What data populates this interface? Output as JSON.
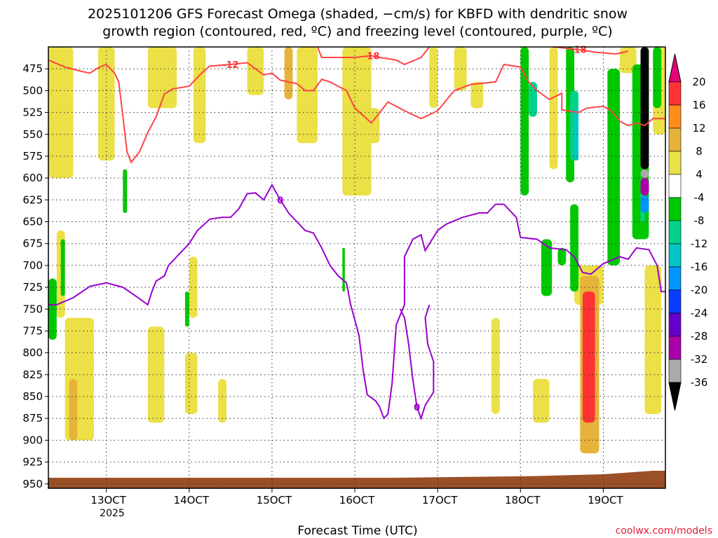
{
  "chart_data": {
    "type": "heatmap",
    "title_line1": "2025101206 GFS Forecast Omega (shaded, −cm/s) for KBFD with dendritic snow",
    "title_line2": "growth region (contoured, red, ºC) and freezing level (contoured, purple, ºC)",
    "xlabel": "Forecast Time (UTC)",
    "credit": "coolwx.com/models",
    "x_ticks": [
      {
        "label": "13OCT",
        "day": 13
      },
      {
        "label": "14OCT",
        "day": 14
      },
      {
        "label": "15OCT",
        "day": 15
      },
      {
        "label": "16OCT",
        "day": 16
      },
      {
        "label": "17OCT",
        "day": 17
      },
      {
        "label": "18OCT",
        "day": 18
      },
      {
        "label": "19OCT",
        "day": 19
      }
    ],
    "x_year": "2025",
    "xlim": [
      12.3,
      19.75
    ],
    "ylim": [
      450,
      955
    ],
    "y_ticks": [
      475,
      500,
      525,
      550,
      575,
      600,
      625,
      650,
      675,
      700,
      725,
      750,
      775,
      800,
      825,
      850,
      875,
      900,
      925,
      950
    ],
    "colorbar": {
      "labels": [
        "20",
        "16",
        "12",
        "8",
        "4",
        "-4",
        "-8",
        "-12",
        "-16",
        "-20",
        "-24",
        "-28",
        "-32",
        "-36"
      ],
      "colors": [
        "#ff3333",
        "#ff8c1a",
        "#e6b33a",
        "#ebe046",
        "#ffffff",
        "#00c800",
        "#00d28c",
        "#00c8c8",
        "#0096ff",
        "#0a3cff",
        "#6600cc",
        "#aa00aa",
        "#aaaaaa"
      ],
      "top_color": "#e6007a",
      "bottom_color": "#000000"
    },
    "dendritic_contours": [
      {
        "label": "-12",
        "points": [
          [
            12.3,
            465
          ],
          [
            12.5,
            473
          ],
          [
            12.7,
            478
          ],
          [
            12.8,
            480
          ],
          [
            12.9,
            474
          ],
          [
            13.0,
            470
          ],
          [
            13.1,
            480
          ],
          [
            13.15,
            490
          ],
          [
            13.2,
            530
          ],
          [
            13.25,
            570
          ],
          [
            13.3,
            582
          ],
          [
            13.4,
            570
          ],
          [
            13.5,
            548
          ],
          [
            13.6,
            530
          ],
          [
            13.7,
            504
          ],
          [
            13.8,
            498
          ],
          [
            14.0,
            495
          ],
          [
            14.15,
            480
          ],
          [
            14.25,
            472
          ],
          [
            14.5,
            470
          ],
          [
            14.7,
            468
          ],
          [
            14.8,
            475
          ],
          [
            14.9,
            482
          ],
          [
            15.0,
            480
          ],
          [
            15.1,
            488
          ],
          [
            15.3,
            492
          ],
          [
            15.4,
            500
          ],
          [
            15.5,
            500
          ],
          [
            15.6,
            487
          ],
          [
            15.7,
            490
          ],
          [
            15.9,
            500
          ],
          [
            16.0,
            520
          ],
          [
            16.2,
            537
          ],
          [
            16.4,
            513
          ],
          [
            16.6,
            523
          ],
          [
            16.8,
            532
          ],
          [
            17.0,
            523
          ],
          [
            17.2,
            500
          ],
          [
            17.4,
            493
          ],
          [
            17.7,
            490
          ],
          [
            17.8,
            470
          ],
          [
            18.0,
            473
          ],
          [
            18.1,
            490
          ],
          [
            18.2,
            500
          ],
          [
            18.35,
            510
          ],
          [
            18.5,
            503
          ],
          [
            18.5,
            522
          ],
          [
            18.7,
            525
          ],
          [
            18.8,
            520
          ],
          [
            19.0,
            518
          ],
          [
            19.1,
            523
          ],
          [
            19.2,
            535
          ],
          [
            19.3,
            540
          ],
          [
            19.4,
            537
          ],
          [
            19.5,
            540
          ],
          [
            19.6,
            532
          ],
          [
            19.75,
            532
          ]
        ]
      },
      {
        "label": "-18",
        "points": [
          [
            15.55,
            450
          ],
          [
            15.6,
            462
          ],
          [
            16.0,
            462
          ],
          [
            16.2,
            460
          ],
          [
            16.3,
            462
          ],
          [
            16.5,
            465
          ],
          [
            16.6,
            470
          ],
          [
            16.8,
            462
          ],
          [
            16.9,
            450
          ]
        ]
      },
      {
        "label": "-18",
        "points": [
          [
            18.4,
            450
          ],
          [
            18.7,
            453
          ],
          [
            18.9,
            456
          ],
          [
            19.15,
            458
          ],
          [
            19.3,
            455
          ]
        ]
      }
    ],
    "freezing_contours": [
      {
        "label": "0",
        "points": [
          [
            12.3,
            745
          ],
          [
            12.4,
            745
          ],
          [
            12.6,
            737
          ],
          [
            12.8,
            724
          ],
          [
            13.0,
            720
          ],
          [
            13.2,
            725
          ],
          [
            13.4,
            738
          ],
          [
            13.5,
            745
          ],
          [
            13.55,
            730
          ],
          [
            13.6,
            718
          ],
          [
            13.7,
            712
          ],
          [
            13.75,
            700
          ],
          [
            13.85,
            690
          ],
          [
            14.0,
            675
          ],
          [
            14.1,
            660
          ],
          [
            14.25,
            647
          ],
          [
            14.4,
            645
          ],
          [
            14.5,
            645
          ],
          [
            14.6,
            635
          ],
          [
            14.7,
            618
          ],
          [
            14.8,
            617
          ],
          [
            14.9,
            625
          ],
          [
            15.0,
            608
          ],
          [
            15.1,
            625
          ],
          [
            15.2,
            640
          ],
          [
            15.3,
            650
          ],
          [
            15.4,
            660
          ],
          [
            15.5,
            663
          ],
          [
            15.6,
            680
          ],
          [
            15.7,
            700
          ],
          [
            15.8,
            712
          ],
          [
            15.9,
            720
          ],
          [
            15.95,
            745
          ],
          [
            16.05,
            780
          ],
          [
            16.1,
            820
          ],
          [
            16.15,
            848
          ],
          [
            16.25,
            855
          ],
          [
            16.3,
            862
          ],
          [
            16.35,
            875
          ],
          [
            16.4,
            870
          ],
          [
            16.45,
            835
          ],
          [
            16.5,
            768
          ],
          [
            16.6,
            745
          ],
          [
            16.6,
            690
          ],
          [
            16.7,
            670
          ],
          [
            16.8,
            665
          ],
          [
            16.85,
            683
          ],
          [
            17.0,
            660
          ],
          [
            17.1,
            653
          ],
          [
            17.3,
            645
          ],
          [
            17.5,
            640
          ],
          [
            17.6,
            640
          ],
          [
            17.7,
            630
          ],
          [
            17.8,
            630
          ],
          [
            17.95,
            645
          ],
          [
            18.0,
            668
          ],
          [
            18.2,
            670
          ],
          [
            18.35,
            680
          ],
          [
            18.55,
            682
          ],
          [
            18.65,
            690
          ],
          [
            18.75,
            708
          ],
          [
            18.85,
            710
          ],
          [
            19.0,
            698
          ],
          [
            19.2,
            690
          ],
          [
            19.3,
            693
          ],
          [
            19.4,
            680
          ],
          [
            19.55,
            682
          ],
          [
            19.65,
            700
          ],
          [
            19.7,
            730
          ],
          [
            19.75,
            730
          ]
        ]
      },
      {
        "label": "0",
        "points": [
          [
            16.55,
            750
          ],
          [
            16.6,
            760
          ],
          [
            16.65,
            790
          ],
          [
            16.7,
            830
          ],
          [
            16.75,
            862
          ],
          [
            16.8,
            875
          ],
          [
            16.85,
            860
          ],
          [
            16.95,
            845
          ],
          [
            16.95,
            810
          ],
          [
            16.88,
            790
          ],
          [
            16.85,
            760
          ],
          [
            16.9,
            745
          ]
        ]
      }
    ],
    "omega_blobs": [
      {
        "v": 6,
        "t0": 12.3,
        "t1": 12.6,
        "p0": 450,
        "p1": 600
      },
      {
        "v": 6,
        "t0": 12.9,
        "t1": 13.1,
        "p0": 450,
        "p1": 580
      },
      {
        "v": 6,
        "t0": 13.5,
        "t1": 13.85,
        "p0": 450,
        "p1": 520
      },
      {
        "v": 6,
        "t0": 14.05,
        "t1": 14.2,
        "p0": 450,
        "p1": 560
      },
      {
        "v": 6,
        "t0": 14.7,
        "t1": 14.9,
        "p0": 450,
        "p1": 505
      },
      {
        "v": 6,
        "t0": 15.3,
        "t1": 15.55,
        "p0": 450,
        "p1": 560
      },
      {
        "v": 6,
        "t0": 15.85,
        "t1": 16.2,
        "p0": 450,
        "p1": 620
      },
      {
        "v": 6,
        "t0": 16.9,
        "t1": 17.0,
        "p0": 450,
        "p1": 520
      },
      {
        "v": 6,
        "t0": 17.2,
        "t1": 17.35,
        "p0": 450,
        "p1": 500
      },
      {
        "v": 6,
        "t0": 18.35,
        "t1": 18.45,
        "p0": 450,
        "p1": 590
      },
      {
        "v": 6,
        "t0": 19.2,
        "t1": 19.4,
        "p0": 450,
        "p1": 480
      },
      {
        "v": 6,
        "t0": 19.6,
        "t1": 19.75,
        "p0": 450,
        "p1": 550
      },
      {
        "v": 6,
        "t0": 12.5,
        "t1": 12.85,
        "p0": 760,
        "p1": 900
      },
      {
        "v": 6,
        "t0": 13.5,
        "t1": 13.7,
        "p0": 770,
        "p1": 880
      },
      {
        "v": 6,
        "t0": 13.95,
        "t1": 14.1,
        "p0": 800,
        "p1": 870
      },
      {
        "v": 6,
        "t0": 14.35,
        "t1": 14.45,
        "p0": 830,
        "p1": 880
      },
      {
        "v": 6,
        "t0": 16.05,
        "t1": 16.3,
        "p0": 520,
        "p1": 560
      },
      {
        "v": 6,
        "t0": 17.4,
        "t1": 17.55,
        "p0": 490,
        "p1": 520
      },
      {
        "v": 6,
        "t0": 17.65,
        "t1": 17.75,
        "p0": 760,
        "p1": 870
      },
      {
        "v": 6,
        "t0": 18.15,
        "t1": 18.35,
        "p0": 830,
        "p1": 880
      },
      {
        "v": 6,
        "t0": 18.65,
        "t1": 19.0,
        "p0": 700,
        "p1": 745
      },
      {
        "v": 6,
        "t0": 19.5,
        "t1": 19.7,
        "p0": 700,
        "p1": 870
      },
      {
        "v": 6,
        "t0": 12.4,
        "t1": 12.5,
        "p0": 660,
        "p1": 760
      },
      {
        "v": 6,
        "t0": 14.0,
        "t1": 14.1,
        "p0": 690,
        "p1": 760
      },
      {
        "v": 10,
        "t0": 12.55,
        "t1": 12.65,
        "p0": 830,
        "p1": 900
      },
      {
        "v": 10,
        "t0": 15.15,
        "t1": 15.25,
        "p0": 450,
        "p1": 510
      },
      {
        "v": 10,
        "t0": 18.72,
        "t1": 18.95,
        "p0": 712,
        "p1": 915
      },
      {
        "v": 18,
        "t0": 18.75,
        "t1": 18.9,
        "p0": 730,
        "p1": 880
      },
      {
        "v": -6,
        "t0": 12.3,
        "t1": 12.4,
        "p0": 715,
        "p1": 785
      },
      {
        "v": -6,
        "t0": 12.45,
        "t1": 12.5,
        "p0": 670,
        "p1": 735
      },
      {
        "v": -6,
        "t0": 13.2,
        "t1": 13.25,
        "p0": 590,
        "p1": 640
      },
      {
        "v": -6,
        "t0": 13.95,
        "t1": 14.0,
        "p0": 730,
        "p1": 770
      },
      {
        "v": -6,
        "t0": 15.85,
        "t1": 15.88,
        "p0": 680,
        "p1": 730
      },
      {
        "v": -6,
        "t0": 18.0,
        "t1": 18.1,
        "p0": 450,
        "p1": 620
      },
      {
        "v": -6,
        "t0": 18.25,
        "t1": 18.38,
        "p0": 670,
        "p1": 735
      },
      {
        "v": -6,
        "t0": 18.55,
        "t1": 18.65,
        "p0": 450,
        "p1": 605
      },
      {
        "v": -6,
        "t0": 18.45,
        "t1": 18.55,
        "p0": 680,
        "p1": 700
      },
      {
        "v": -6,
        "t0": 18.6,
        "t1": 18.7,
        "p0": 630,
        "p1": 730
      },
      {
        "v": -6,
        "t0": 19.05,
        "t1": 19.2,
        "p0": 475,
        "p1": 700
      },
      {
        "v": -6,
        "t0": 19.35,
        "t1": 19.55,
        "p0": 470,
        "p1": 670
      },
      {
        "v": -6,
        "t0": 19.6,
        "t1": 19.7,
        "p0": 450,
        "p1": 520
      },
      {
        "v": -10,
        "t0": 18.1,
        "t1": 18.2,
        "p0": 490,
        "p1": 530
      },
      {
        "v": -10,
        "t0": 18.6,
        "t1": 18.7,
        "p0": 500,
        "p1": 580
      },
      {
        "v": -10,
        "t0": 19.45,
        "t1": 19.5,
        "p0": 600,
        "p1": 650
      },
      {
        "v": -14,
        "t0": 18.65,
        "t1": 18.7,
        "p0": 520,
        "p1": 580
      },
      {
        "v": -38,
        "t0": 19.45,
        "t1": 19.55,
        "p0": 450,
        "p1": 590
      },
      {
        "v": -34,
        "t0": 19.45,
        "t1": 19.55,
        "p0": 590,
        "p1": 600
      },
      {
        "v": -30,
        "t0": 19.45,
        "t1": 19.55,
        "p0": 600,
        "p1": 620
      },
      {
        "v": -18,
        "t0": 19.45,
        "t1": 19.55,
        "p0": 620,
        "p1": 640
      }
    ]
  }
}
